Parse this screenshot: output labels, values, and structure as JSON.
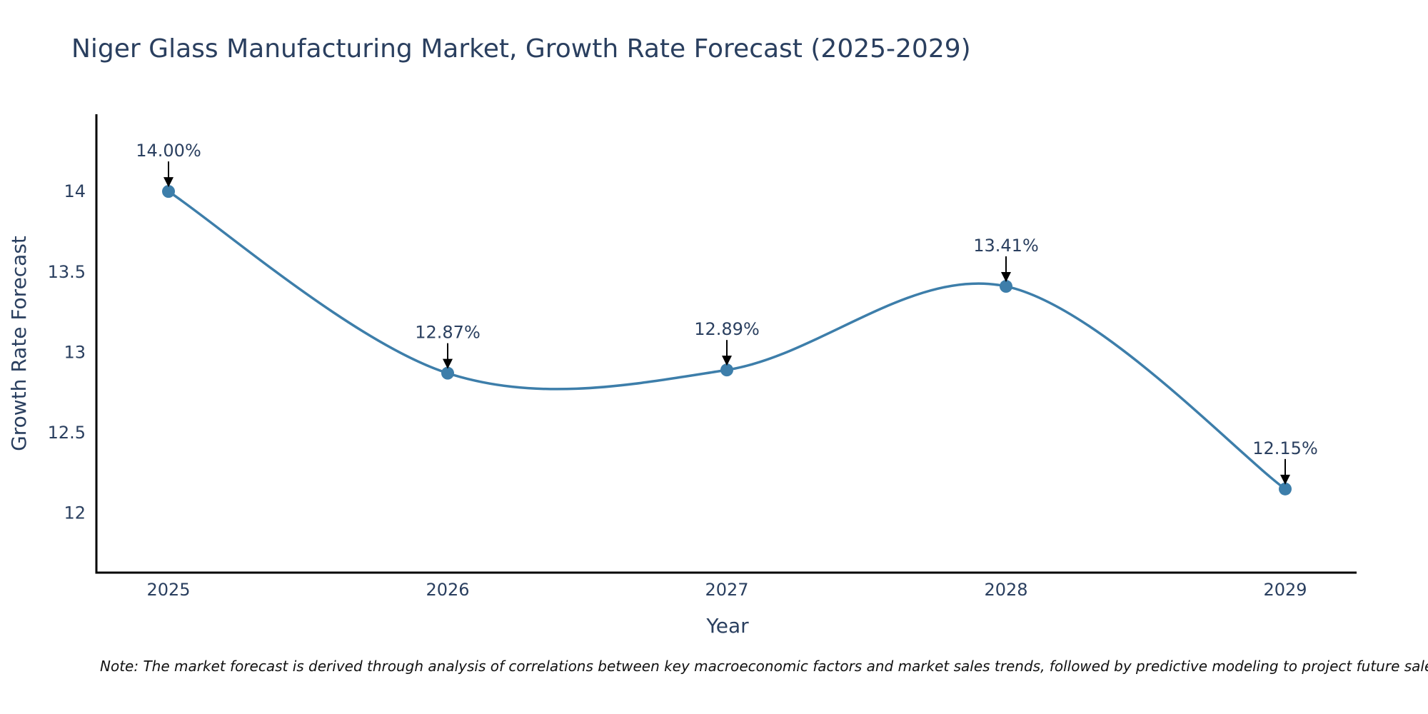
{
  "chart_data": {
    "type": "line",
    "title": "Niger Glass Manufacturing Market, Growth Rate Forecast (2025-2029)",
    "xlabel": "Year",
    "ylabel": "Growth Rate Forecast",
    "categories": [
      "2025",
      "2026",
      "2027",
      "2028",
      "2029"
    ],
    "values": [
      14.0,
      12.87,
      12.89,
      13.41,
      12.15
    ],
    "data_labels": [
      "14.00%",
      "12.87%",
      "12.89%",
      "13.41%",
      "12.15%"
    ],
    "yticks": [
      12,
      12.5,
      13,
      13.5,
      14
    ],
    "ytick_labels": [
      "12",
      "12.5",
      "13",
      "13.5",
      "14"
    ],
    "ylim": [
      11.63,
      14.48
    ],
    "line_shape": "spline",
    "grid": false,
    "series_color": "#3d7eaa",
    "note": "Note: The market forecast is derived through analysis of correlations between key macroeconomic factors and market sales trends, followed by predictive modeling to project future sales."
  }
}
